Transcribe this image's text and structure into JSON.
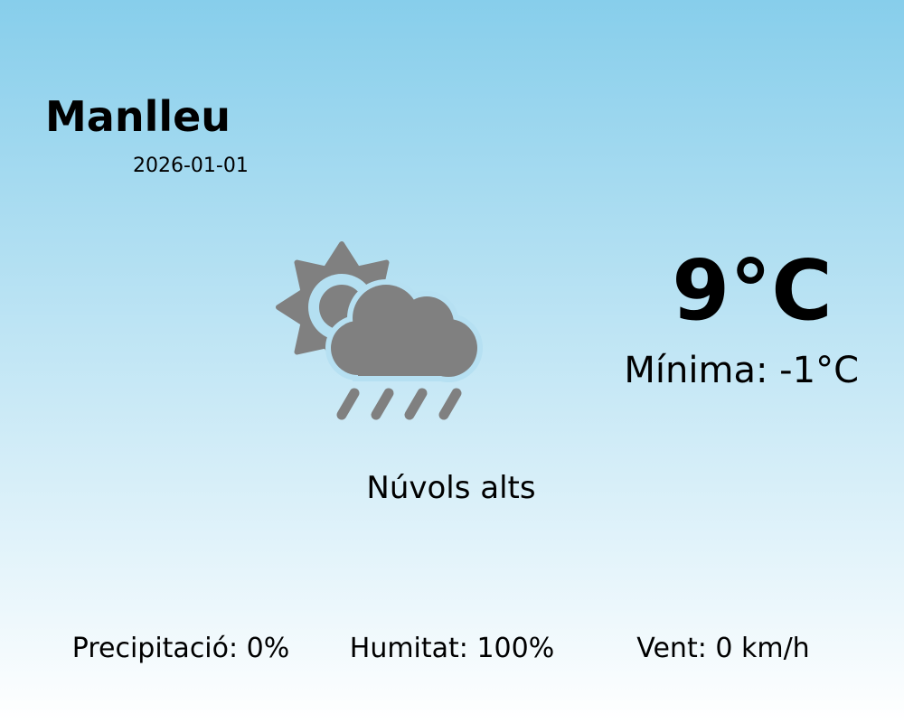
{
  "location": {
    "city": "Manlleu",
    "date": "2026-01-01"
  },
  "current": {
    "temperature": "9°C",
    "minimum": "Mínima: -1°C",
    "description": "Núvols alts",
    "icon": "sun-cloud-rain-icon",
    "icon_color": "#808080"
  },
  "stats": {
    "precipitation": "Precipitació: 0%",
    "humidity": "Humitat: 100%",
    "wind": "Vent: 0 km/h"
  },
  "colors": {
    "background_top": "#87ceeb",
    "background_bottom": "#ffffff"
  }
}
